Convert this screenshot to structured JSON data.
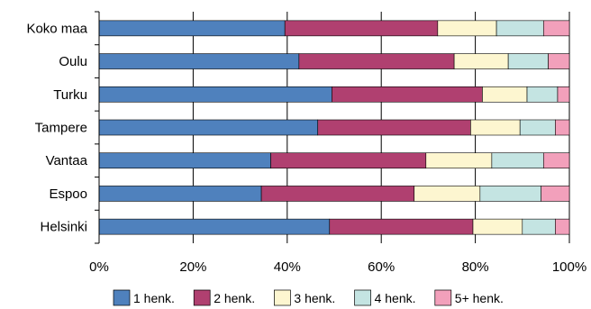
{
  "chart_data": {
    "type": "bar",
    "orientation": "horizontal",
    "stacked": true,
    "percent": true,
    "categories": [
      "Koko maa",
      "Oulu",
      "Turku",
      "Tampere",
      "Vantaa",
      "Espoo",
      "Helsinki"
    ],
    "series": [
      {
        "name": "1 henk.",
        "color": "#4f81bd",
        "values": [
          39.5,
          42.5,
          49.5,
          46.5,
          36.5,
          34.5,
          49
        ]
      },
      {
        "name": "2 henk.",
        "color": "#b04070",
        "values": [
          32.5,
          33,
          32,
          32.5,
          33,
          32.5,
          30.5
        ]
      },
      {
        "name": "3 henk.",
        "color": "#fdf6d0",
        "values": [
          12.5,
          11.5,
          9.5,
          10.5,
          14,
          14,
          10.5
        ]
      },
      {
        "name": "4 henk.",
        "color": "#c4e4e2",
        "values": [
          10,
          8.5,
          6.5,
          7.5,
          11,
          13,
          7
        ]
      },
      {
        "name": "5+ henk.",
        "color": "#f2a0bb",
        "values": [
          5.5,
          4.5,
          2.5,
          3,
          5.5,
          6,
          3
        ]
      }
    ],
    "x_ticks": [
      "0%",
      "20%",
      "40%",
      "60%",
      "80%",
      "100%"
    ],
    "xlim": [
      0,
      100
    ],
    "grid": "vertical",
    "legend": "bottom"
  }
}
